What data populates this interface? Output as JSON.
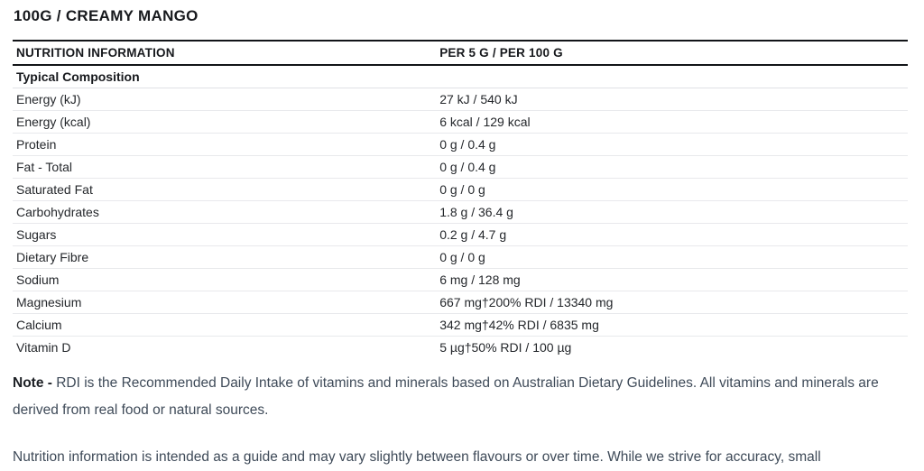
{
  "page": {
    "title": "100G / CREAMY MANGO"
  },
  "table": {
    "header": {
      "col1": "NUTRITION INFORMATION",
      "col2": "PER 5 G / PER 100 G"
    },
    "section_header": "Typical Composition",
    "rows": [
      {
        "label": "Energy (kJ)",
        "value": "27 kJ / 540 kJ"
      },
      {
        "label": "Energy (kcal)",
        "value": "6 kcal / 129 kcal"
      },
      {
        "label": "Protein",
        "value": "0 g / 0.4 g"
      },
      {
        "label": "Fat - Total",
        "value": "0 g / 0.4 g"
      },
      {
        "label": "Saturated Fat",
        "value": "0 g / 0 g"
      },
      {
        "label": "Carbohydrates",
        "value": "1.8 g / 36.4 g"
      },
      {
        "label": "Sugars",
        "value": "0.2 g / 4.7 g"
      },
      {
        "label": "Dietary Fibre",
        "value": "0 g / 0 g"
      },
      {
        "label": "Sodium",
        "value": "6 mg / 128 mg"
      },
      {
        "label": "Magnesium",
        "value": "667 mg†200% RDI / 13340 mg"
      },
      {
        "label": "Calcium",
        "value": "342 mg†42% RDI / 6835 mg"
      },
      {
        "label": "Vitamin D",
        "value": "5 µg†50% RDI / 100 µg"
      }
    ]
  },
  "notes": {
    "note_label": "Note -",
    "note_text": " RDI is the Recommended Daily Intake of vitamins and minerals based on Australian Dietary Guidelines. All vitamins and minerals are derived from real food or natural sources.",
    "disclaimer": "Nutrition information is intended as a guide and may vary slightly between flavours or over time. While we strive for accuracy, small"
  },
  "colors": {
    "text_primary": "#17191d",
    "text_table": "#24272b",
    "text_note": "#3e4a58",
    "border_heavy": "#121418",
    "border_light": "#e8e9ec",
    "background": "#ffffff"
  }
}
